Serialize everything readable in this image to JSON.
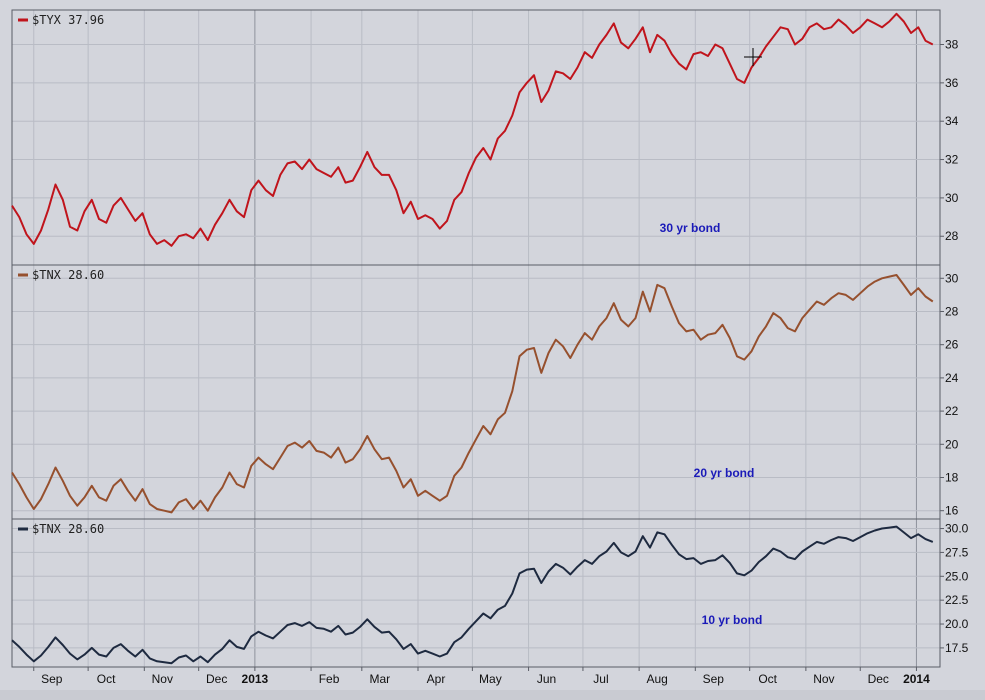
{
  "chart_data": [
    {
      "type": "line",
      "legend": "$TYX 37.96",
      "annotation": "30 yr bond",
      "color": "#c0141c",
      "ylim": [
        26.5,
        39.8
      ],
      "yticks": [
        "28",
        "30",
        "32",
        "34",
        "36",
        "38"
      ],
      "grid": true,
      "x": [
        "2012-08-20",
        "2012-08-24",
        "2012-08-28",
        "2012-09-01",
        "2012-09-05",
        "2012-09-09",
        "2012-09-13",
        "2012-09-17",
        "2012-09-21",
        "2012-09-25",
        "2012-09-29",
        "2012-10-03",
        "2012-10-07",
        "2012-10-11",
        "2012-10-15",
        "2012-10-19",
        "2012-10-23",
        "2012-10-27",
        "2012-10-31",
        "2012-11-04",
        "2012-11-08",
        "2012-11-12",
        "2012-11-16",
        "2012-11-20",
        "2012-11-24",
        "2012-11-28",
        "2012-12-02",
        "2012-12-06",
        "2012-12-10",
        "2012-12-14",
        "2012-12-18",
        "2012-12-22",
        "2012-12-26",
        "2012-12-30",
        "2013-01-03",
        "2013-01-07",
        "2013-01-11",
        "2013-01-15",
        "2013-01-19",
        "2013-01-23",
        "2013-01-27",
        "2013-01-31",
        "2013-02-04",
        "2013-02-08",
        "2013-02-12",
        "2013-02-16",
        "2013-02-20",
        "2013-02-24",
        "2013-02-28",
        "2013-03-04",
        "2013-03-08",
        "2013-03-12",
        "2013-03-16",
        "2013-03-20",
        "2013-03-24",
        "2013-03-28",
        "2013-04-01",
        "2013-04-05",
        "2013-04-09",
        "2013-04-13",
        "2013-04-17",
        "2013-04-21",
        "2013-04-25",
        "2013-04-29",
        "2013-05-03",
        "2013-05-07",
        "2013-05-11",
        "2013-05-15",
        "2013-05-19",
        "2013-05-23",
        "2013-05-27",
        "2013-05-31",
        "2013-06-04",
        "2013-06-08",
        "2013-06-12",
        "2013-06-16",
        "2013-06-20",
        "2013-06-24",
        "2013-06-28",
        "2013-07-02",
        "2013-07-06",
        "2013-07-10",
        "2013-07-14",
        "2013-07-18",
        "2013-07-22",
        "2013-07-26",
        "2013-07-30",
        "2013-08-03",
        "2013-08-07",
        "2013-08-11",
        "2013-08-15",
        "2013-08-19",
        "2013-08-23",
        "2013-08-27",
        "2013-08-31",
        "2013-09-04",
        "2013-09-08",
        "2013-09-12",
        "2013-09-16",
        "2013-09-20",
        "2013-09-24",
        "2013-09-28",
        "2013-10-02",
        "2013-10-06",
        "2013-10-10",
        "2013-10-14",
        "2013-10-18",
        "2013-10-22",
        "2013-10-26",
        "2013-10-30",
        "2013-11-03",
        "2013-11-07",
        "2013-11-11",
        "2013-11-15",
        "2013-11-19",
        "2013-11-23",
        "2013-11-27",
        "2013-12-01",
        "2013-12-05",
        "2013-12-09",
        "2013-12-13",
        "2013-12-17",
        "2013-12-21",
        "2013-12-25",
        "2013-12-29",
        "2014-01-02",
        "2014-01-06",
        "2014-01-10"
      ],
      "values": [
        29.6,
        29.0,
        28.1,
        27.6,
        28.3,
        29.4,
        30.7,
        29.9,
        28.5,
        28.3,
        29.3,
        29.9,
        28.9,
        28.7,
        29.6,
        30.0,
        29.4,
        28.8,
        29.2,
        28.1,
        27.6,
        27.8,
        27.5,
        28.0,
        28.1,
        27.9,
        28.4,
        27.8,
        28.6,
        29.2,
        29.9,
        29.3,
        29.0,
        30.4,
        30.9,
        30.4,
        30.1,
        31.2,
        31.8,
        31.9,
        31.5,
        32.0,
        31.5,
        31.3,
        31.1,
        31.6,
        30.8,
        30.9,
        31.6,
        32.4,
        31.6,
        31.2,
        31.2,
        30.4,
        29.2,
        29.8,
        28.9,
        29.1,
        28.9,
        28.4,
        28.8,
        29.9,
        30.3,
        31.3,
        32.1,
        32.6,
        32.0,
        33.1,
        33.5,
        34.3,
        35.5,
        36.0,
        36.4,
        35.0,
        35.6,
        36.6,
        36.5,
        36.2,
        36.8,
        37.6,
        37.3,
        38.0,
        38.5,
        39.1,
        38.1,
        37.8,
        38.3,
        38.9,
        37.6,
        38.5,
        38.2,
        37.5,
        37.0,
        36.7,
        37.5,
        37.6,
        37.4,
        38.0,
        37.8,
        37.0,
        36.2,
        36.0,
        36.8,
        37.3,
        37.9,
        38.4,
        38.9,
        38.8,
        38.0,
        38.3,
        38.9,
        39.1,
        38.8,
        38.9,
        39.3,
        39.0,
        38.6,
        38.9,
        39.3,
        39.1,
        38.9,
        39.2,
        39.6,
        39.2,
        38.6,
        38.9,
        38.2,
        38.0
      ],
      "values_note": "",
      "end_dates_note": ""
    },
    {
      "type": "line",
      "legend": "$TNX 28.60",
      "annotation": "20 yr bond",
      "color": "#96502e",
      "ylim": [
        15.5,
        30.8
      ],
      "yticks": [
        "16",
        "18",
        "20",
        "22",
        "24",
        "26",
        "28",
        "30"
      ],
      "grid": true,
      "x": [
        "2012-08-20",
        "2012-08-24",
        "2012-08-28",
        "2012-09-01",
        "2012-09-05",
        "2012-09-09",
        "2012-09-13",
        "2012-09-17",
        "2012-09-21",
        "2012-09-25",
        "2012-09-29",
        "2012-10-03",
        "2012-10-07",
        "2012-10-11",
        "2012-10-15",
        "2012-10-19",
        "2012-10-23",
        "2012-10-27",
        "2012-10-31",
        "2012-11-04",
        "2012-11-08",
        "2012-11-12",
        "2012-11-16",
        "2012-11-20",
        "2012-11-24",
        "2012-11-28",
        "2012-12-02",
        "2012-12-06",
        "2012-12-10",
        "2012-12-14",
        "2012-12-18",
        "2012-12-22",
        "2012-12-26",
        "2012-12-30",
        "2013-01-03",
        "2013-01-07",
        "2013-01-11",
        "2013-01-15",
        "2013-01-19",
        "2013-01-23",
        "2013-01-27",
        "2013-01-31",
        "2013-02-04",
        "2013-02-08",
        "2013-02-12",
        "2013-02-16",
        "2013-02-20",
        "2013-02-24",
        "2013-02-28",
        "2013-03-04",
        "2013-03-08",
        "2013-03-12",
        "2013-03-16",
        "2013-03-20",
        "2013-03-24",
        "2013-03-28",
        "2013-04-01",
        "2013-04-05",
        "2013-04-09",
        "2013-04-13",
        "2013-04-17",
        "2013-04-21",
        "2013-04-25",
        "2013-04-29",
        "2013-05-03",
        "2013-05-07",
        "2013-05-11",
        "2013-05-15",
        "2013-05-19",
        "2013-05-23",
        "2013-05-27",
        "2013-05-31",
        "2013-06-04",
        "2013-06-08",
        "2013-06-12",
        "2013-06-16",
        "2013-06-20",
        "2013-06-24",
        "2013-06-28",
        "2013-07-02",
        "2013-07-06",
        "2013-07-10",
        "2013-07-14",
        "2013-07-18",
        "2013-07-22",
        "2013-07-26",
        "2013-07-30",
        "2013-08-03",
        "2013-08-07",
        "2013-08-11",
        "2013-08-15",
        "2013-08-19",
        "2013-08-23",
        "2013-08-27",
        "2013-08-31",
        "2013-09-04",
        "2013-09-08",
        "2013-09-12",
        "2013-09-16",
        "2013-09-20",
        "2013-09-24",
        "2013-09-28",
        "2013-10-02",
        "2013-10-06",
        "2013-10-10",
        "2013-10-14",
        "2013-10-18",
        "2013-10-22",
        "2013-10-26",
        "2013-10-30",
        "2013-11-03",
        "2013-11-07",
        "2013-11-11",
        "2013-11-15",
        "2013-11-19",
        "2013-11-23",
        "2013-11-27",
        "2013-12-01",
        "2013-12-05",
        "2013-12-09",
        "2013-12-13",
        "2013-12-17",
        "2013-12-21",
        "2013-12-25",
        "2013-12-29",
        "2014-01-02",
        "2014-01-06",
        "2014-01-10"
      ],
      "values": [
        18.3,
        17.6,
        16.8,
        16.1,
        16.7,
        17.6,
        18.6,
        17.8,
        16.9,
        16.3,
        16.8,
        17.5,
        16.8,
        16.6,
        17.5,
        17.9,
        17.2,
        16.6,
        17.3,
        16.4,
        16.1,
        16.0,
        15.9,
        16.5,
        16.7,
        16.1,
        16.6,
        16.0,
        16.8,
        17.4,
        18.3,
        17.6,
        17.4,
        18.7,
        19.2,
        18.8,
        18.5,
        19.2,
        19.9,
        20.1,
        19.8,
        20.2,
        19.6,
        19.5,
        19.2,
        19.8,
        18.9,
        19.1,
        19.7,
        20.5,
        19.7,
        19.1,
        19.2,
        18.4,
        17.4,
        17.9,
        16.9,
        17.2,
        16.9,
        16.6,
        16.9,
        18.1,
        18.6,
        19.5,
        20.3,
        21.1,
        20.6,
        21.5,
        21.9,
        23.2,
        25.3,
        25.7,
        25.8,
        24.3,
        25.5,
        26.3,
        25.9,
        25.2,
        26.0,
        26.7,
        26.3,
        27.1,
        27.6,
        28.5,
        27.5,
        27.1,
        27.6,
        29.2,
        28.0,
        29.6,
        29.4,
        28.3,
        27.3,
        26.8,
        26.9,
        26.3,
        26.6,
        26.7,
        27.2,
        26.4,
        25.3,
        25.1,
        25.6,
        26.5,
        27.1,
        27.9,
        27.6,
        27.0,
        26.8,
        27.6,
        28.1,
        28.6,
        28.4,
        28.8,
        29.1,
        29.0,
        28.7,
        29.1,
        29.5,
        29.8,
        30.0,
        30.1,
        30.2,
        29.6,
        29.0,
        29.4,
        28.9,
        28.6
      ],
      "values_note": ""
    },
    {
      "type": "line",
      "legend": "$TNX 28.60",
      "annotation": "10 yr bond",
      "color": "#1e2a40",
      "ylim": [
        15.5,
        31.0
      ],
      "yticks": [
        "17.5",
        "20.0",
        "22.5",
        "25.0",
        "27.5",
        "30.0"
      ],
      "grid": true,
      "x": [
        "2012-08-20",
        "2012-08-24",
        "2012-08-28",
        "2012-09-01",
        "2012-09-05",
        "2012-09-09",
        "2012-09-13",
        "2012-09-17",
        "2012-09-21",
        "2012-09-25",
        "2012-09-29",
        "2012-10-03",
        "2012-10-07",
        "2012-10-11",
        "2012-10-15",
        "2012-10-19",
        "2012-10-23",
        "2012-10-27",
        "2012-10-31",
        "2012-11-04",
        "2012-11-08",
        "2012-11-12",
        "2012-11-16",
        "2012-11-20",
        "2012-11-24",
        "2012-11-28",
        "2012-12-02",
        "2012-12-06",
        "2012-12-10",
        "2012-12-14",
        "2012-12-18",
        "2012-12-22",
        "2012-12-26",
        "2012-12-30",
        "2013-01-03",
        "2013-01-07",
        "2013-01-11",
        "2013-01-15",
        "2013-01-19",
        "2013-01-23",
        "2013-01-27",
        "2013-01-31",
        "2013-02-04",
        "2013-02-08",
        "2013-02-12",
        "2013-02-16",
        "2013-02-20",
        "2013-02-24",
        "2013-02-28",
        "2013-03-04",
        "2013-03-08",
        "2013-03-12",
        "2013-03-16",
        "2013-03-20",
        "2013-03-24",
        "2013-03-28",
        "2013-04-01",
        "2013-04-05",
        "2013-04-09",
        "2013-04-13",
        "2013-04-17",
        "2013-04-21",
        "2013-04-25",
        "2013-04-29",
        "2013-05-03",
        "2013-05-07",
        "2013-05-11",
        "2013-05-15",
        "2013-05-19",
        "2013-05-23",
        "2013-05-27",
        "2013-05-31",
        "2013-06-04",
        "2013-06-08",
        "2013-06-12",
        "2013-06-16",
        "2013-06-20",
        "2013-06-24",
        "2013-06-28",
        "2013-07-02",
        "2013-07-06",
        "2013-07-10",
        "2013-07-14",
        "2013-07-18",
        "2013-07-22",
        "2013-07-26",
        "2013-07-30",
        "2013-08-03",
        "2013-08-07",
        "2013-08-11",
        "2013-08-15",
        "2013-08-19",
        "2013-08-23",
        "2013-08-27",
        "2013-08-31",
        "2013-09-04",
        "2013-09-08",
        "2013-09-12",
        "2013-09-16",
        "2013-09-20",
        "2013-09-24",
        "2013-09-28",
        "2013-10-02",
        "2013-10-06",
        "2013-10-10",
        "2013-10-14",
        "2013-10-18",
        "2013-10-22",
        "2013-10-26",
        "2013-10-30",
        "2013-11-03",
        "2013-11-07",
        "2013-11-11",
        "2013-11-15",
        "2013-11-19",
        "2013-11-23",
        "2013-11-27",
        "2013-12-01",
        "2013-12-05",
        "2013-12-09",
        "2013-12-13",
        "2013-12-17",
        "2013-12-21",
        "2013-12-25",
        "2013-12-29",
        "2014-01-02",
        "2014-01-06",
        "2014-01-10"
      ],
      "values": [
        18.3,
        17.6,
        16.8,
        16.1,
        16.7,
        17.6,
        18.6,
        17.8,
        16.9,
        16.3,
        16.8,
        17.5,
        16.8,
        16.6,
        17.5,
        17.9,
        17.2,
        16.6,
        17.3,
        16.4,
        16.1,
        16.0,
        15.9,
        16.5,
        16.7,
        16.1,
        16.6,
        16.0,
        16.8,
        17.4,
        18.3,
        17.6,
        17.4,
        18.7,
        19.2,
        18.8,
        18.5,
        19.2,
        19.9,
        20.1,
        19.8,
        20.2,
        19.6,
        19.5,
        19.2,
        19.8,
        18.9,
        19.1,
        19.7,
        20.5,
        19.7,
        19.1,
        19.2,
        18.4,
        17.4,
        17.9,
        16.9,
        17.2,
        16.9,
        16.6,
        16.9,
        18.1,
        18.6,
        19.5,
        20.3,
        21.1,
        20.6,
        21.5,
        21.9,
        23.2,
        25.3,
        25.7,
        25.8,
        24.3,
        25.5,
        26.3,
        25.9,
        25.2,
        26.0,
        26.7,
        26.3,
        27.1,
        27.6,
        28.5,
        27.5,
        27.1,
        27.6,
        29.2,
        28.0,
        29.6,
        29.4,
        28.3,
        27.3,
        26.8,
        26.9,
        26.3,
        26.6,
        26.7,
        27.2,
        26.4,
        25.3,
        25.1,
        25.6,
        26.5,
        27.1,
        27.9,
        27.6,
        27.0,
        26.8,
        27.6,
        28.1,
        28.6,
        28.4,
        28.8,
        29.1,
        29.0,
        28.7,
        29.1,
        29.5,
        29.8,
        30.0,
        30.1,
        30.2,
        29.6,
        29.0,
        29.4,
        28.9,
        28.6
      ]
    }
  ],
  "x_axis": {
    "range": [
      "2012-08-20",
      "2014-01-14"
    ],
    "ticks": [
      {
        "label": "Sep",
        "date": "2012-09-01",
        "year": false
      },
      {
        "label": "Oct",
        "date": "2012-10-01",
        "year": false
      },
      {
        "label": "Nov",
        "date": "2012-11-01",
        "year": false
      },
      {
        "label": "Dec",
        "date": "2012-12-01",
        "year": false
      },
      {
        "label": "2013",
        "date": "2013-01-01",
        "year": true
      },
      {
        "label": "Feb",
        "date": "2013-02-01",
        "year": false
      },
      {
        "label": "Mar",
        "date": "2013-03-01",
        "year": false
      },
      {
        "label": "Apr",
        "date": "2013-04-01",
        "year": false
      },
      {
        "label": "May",
        "date": "2013-05-01",
        "year": false
      },
      {
        "label": "Jun",
        "date": "2013-06-01",
        "year": false
      },
      {
        "label": "Jul",
        "date": "2013-07-01",
        "year": false
      },
      {
        "label": "Aug",
        "date": "2013-08-01",
        "year": false
      },
      {
        "label": "Sep",
        "date": "2013-09-01",
        "year": false
      },
      {
        "label": "Oct",
        "date": "2013-10-01",
        "year": false
      },
      {
        "label": "Nov",
        "date": "2013-11-01",
        "year": false
      },
      {
        "label": "Dec",
        "date": "2013-12-01",
        "year": false
      },
      {
        "label": "2014",
        "date": "2014-01-01",
        "year": true
      }
    ]
  },
  "colors": {
    "background": "#d3d5dc",
    "grid": "#b9bcc5",
    "border": "#5a5d66"
  }
}
